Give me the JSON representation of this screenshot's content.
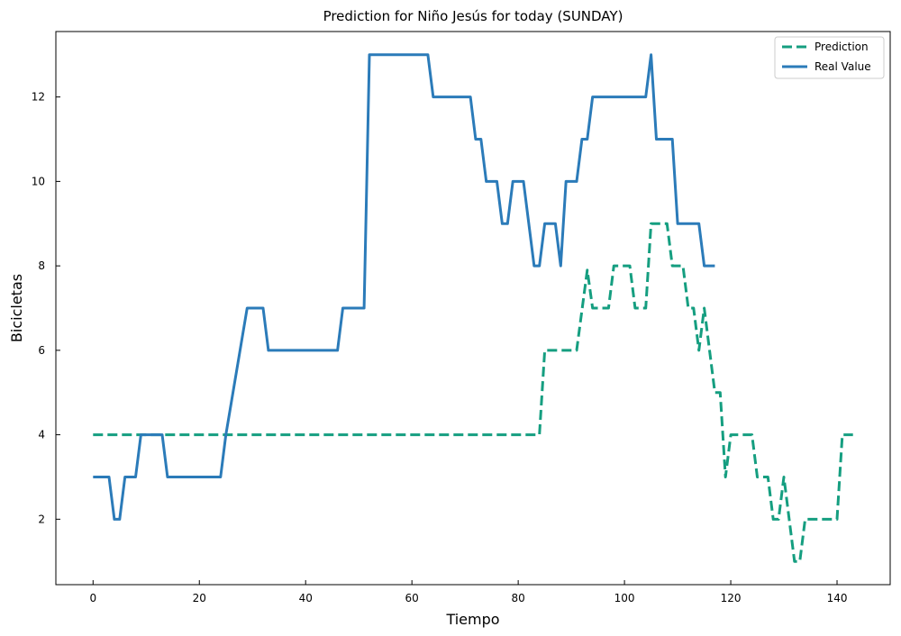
{
  "chart_data": {
    "type": "line",
    "title": "Prediction for Niño Jesús for today (SUNDAY)",
    "xlabel": "Tiempo",
    "ylabel": "Bicicletas",
    "xlim": [
      -7,
      150
    ],
    "ylim": [
      0.45,
      13.55
    ],
    "xticks": [
      0,
      20,
      40,
      60,
      80,
      100,
      120,
      140
    ],
    "yticks": [
      2,
      4,
      6,
      8,
      10,
      12
    ],
    "grid": false,
    "legend_position": "top-right",
    "series": [
      {
        "name": "Prediction",
        "style": "dashed",
        "color": "#159e80",
        "x": [
          0,
          84,
          85,
          91,
          93,
          94,
          97,
          98,
          100,
          101,
          102,
          104,
          105,
          108,
          109,
          111,
          112,
          113,
          114,
          115,
          117,
          118,
          119,
          120,
          124,
          125,
          127,
          128,
          129,
          130,
          131,
          132,
          133,
          134,
          135,
          140,
          141,
          143
        ],
        "y": [
          4,
          4,
          6,
          6,
          7.9,
          7,
          7,
          8,
          8,
          8,
          7,
          7,
          9,
          9,
          8,
          8,
          7,
          7,
          6,
          7,
          5,
          5,
          3,
          4,
          4,
          3,
          3,
          2,
          2,
          3,
          2,
          1,
          1,
          2,
          2,
          2,
          4,
          4
        ]
      },
      {
        "name": "Real Value",
        "style": "solid",
        "color": "#2b7bb9",
        "x": [
          0,
          3,
          4,
          5,
          6,
          8,
          9,
          13,
          14,
          24,
          25,
          29,
          32,
          33,
          46,
          47,
          51,
          52,
          63,
          64,
          71,
          72,
          73,
          74,
          76,
          77,
          78,
          79,
          81,
          83,
          84,
          85,
          87,
          88,
          89,
          91,
          92,
          93,
          94,
          104,
          105,
          106,
          109,
          110,
          114,
          115,
          117
        ],
        "y": [
          3,
          3,
          2,
          2,
          3,
          3,
          4,
          4,
          3,
          3,
          4,
          7,
          7,
          6,
          6,
          7,
          7,
          13,
          13,
          12,
          12,
          11,
          11,
          10,
          10,
          9,
          9,
          10,
          10,
          8,
          8,
          9,
          9,
          8,
          10,
          10,
          11,
          11,
          12,
          12,
          13,
          11,
          11,
          9,
          9,
          8,
          8
        ]
      }
    ]
  }
}
